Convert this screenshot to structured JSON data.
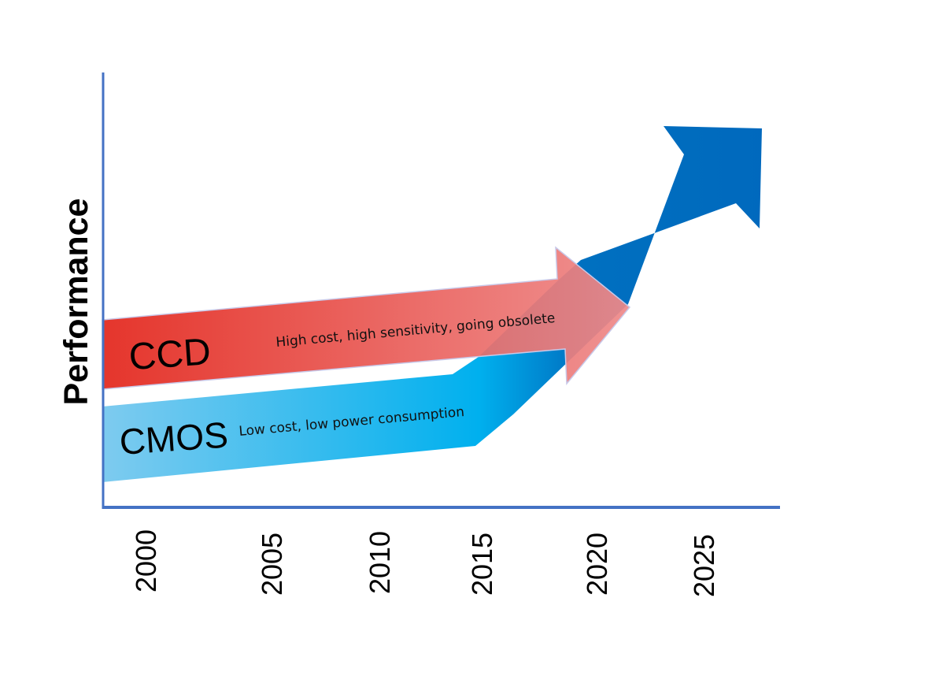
{
  "diagram": {
    "ylabel": "Performance",
    "x_ticks": [
      "2000",
      "2005",
      "2010",
      "2015",
      "2020",
      "2025"
    ],
    "ccd": {
      "name": "CCD",
      "note": "High cost, high sensitivity, going obsolete",
      "color_start": "#e3261c",
      "color_end": "#ee8a8a"
    },
    "cmos": {
      "name": "CMOS",
      "note": "Low cost, low power consumption",
      "color_start": "#7ecbef",
      "color_end": "#0070c0"
    },
    "axis_color": "#4472c4"
  }
}
